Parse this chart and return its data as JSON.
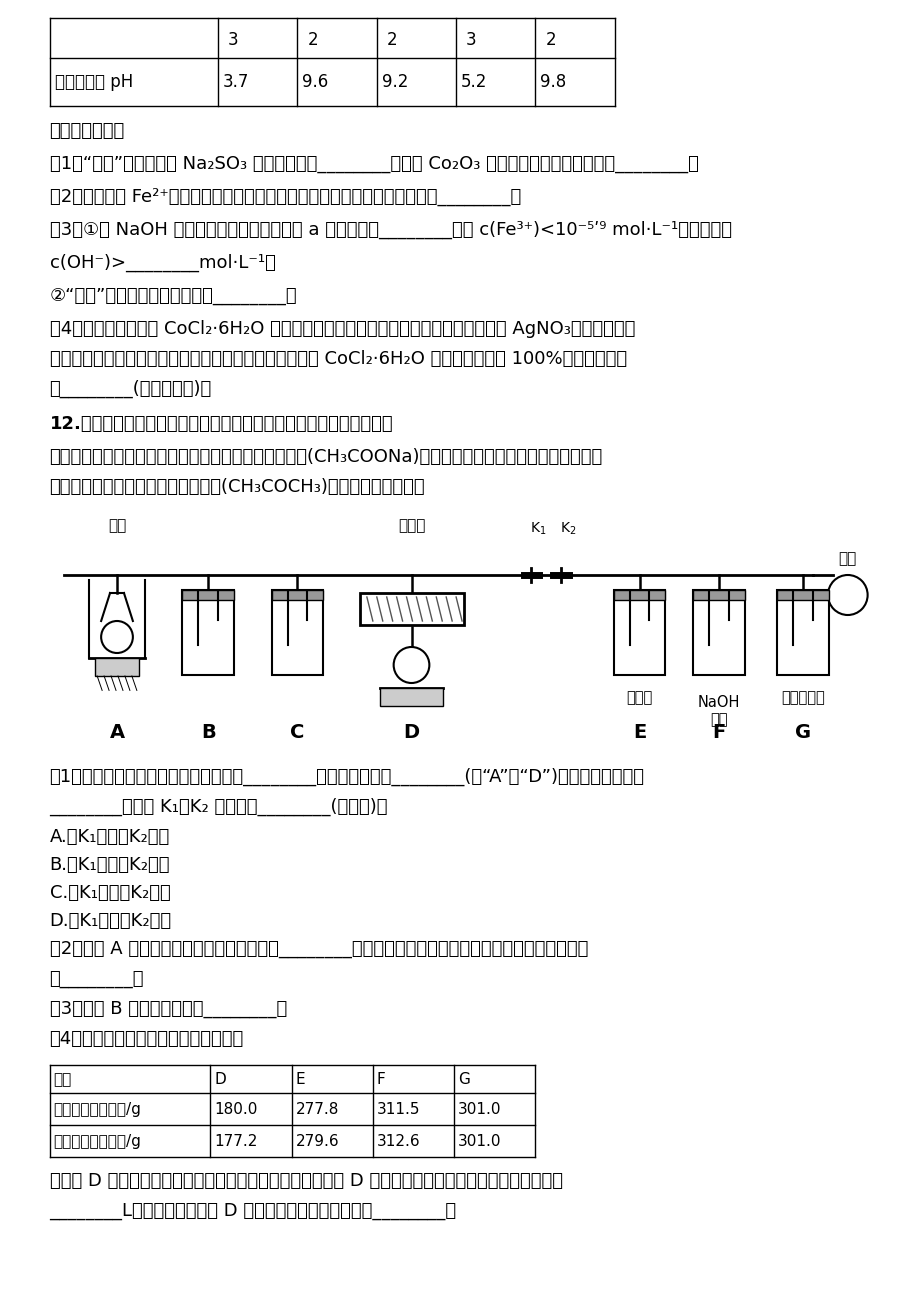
{
  "background_color": "#ffffff",
  "table1_row1": [
    "",
    "3",
    "2",
    "2",
    "3",
    "2"
  ],
  "table1_row2": [
    "完全沉淠的 pH",
    "3.7",
    "9.6",
    "9.2",
    "5.2",
    "9.8"
  ],
  "table2_headers": [
    "装置",
    "D",
    "E",
    "F",
    "G"
  ],
  "table2_row1": [
    "实验前装置总质量/g",
    "180.0",
    "277.8",
    "311.5",
    "301.0"
  ],
  "table2_row2": [
    "实验后装置总质量/g",
    "177.2",
    "279.6",
    "312.6",
    "301.0"
  ]
}
